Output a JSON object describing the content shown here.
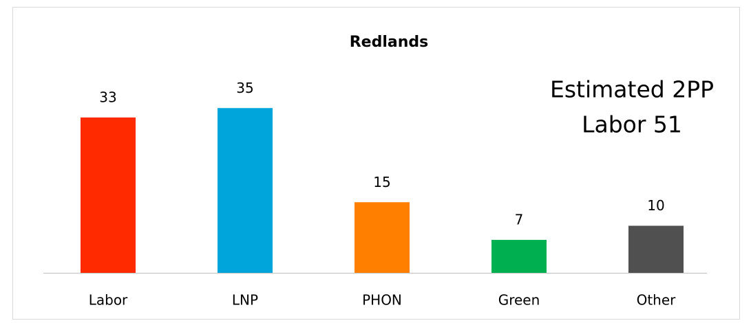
{
  "chart_data": {
    "type": "bar",
    "title": "Redlands",
    "categories": [
      "Labor",
      "LNP",
      "PHON",
      "Green",
      "Other"
    ],
    "values": [
      33,
      35,
      15,
      7,
      10
    ],
    "colors": [
      "#ff2a00",
      "#00a5dc",
      "#ff7f00",
      "#00b050",
      "#505050"
    ],
    "annotations": [
      "Estimated 2PP",
      "Labor 51"
    ]
  }
}
